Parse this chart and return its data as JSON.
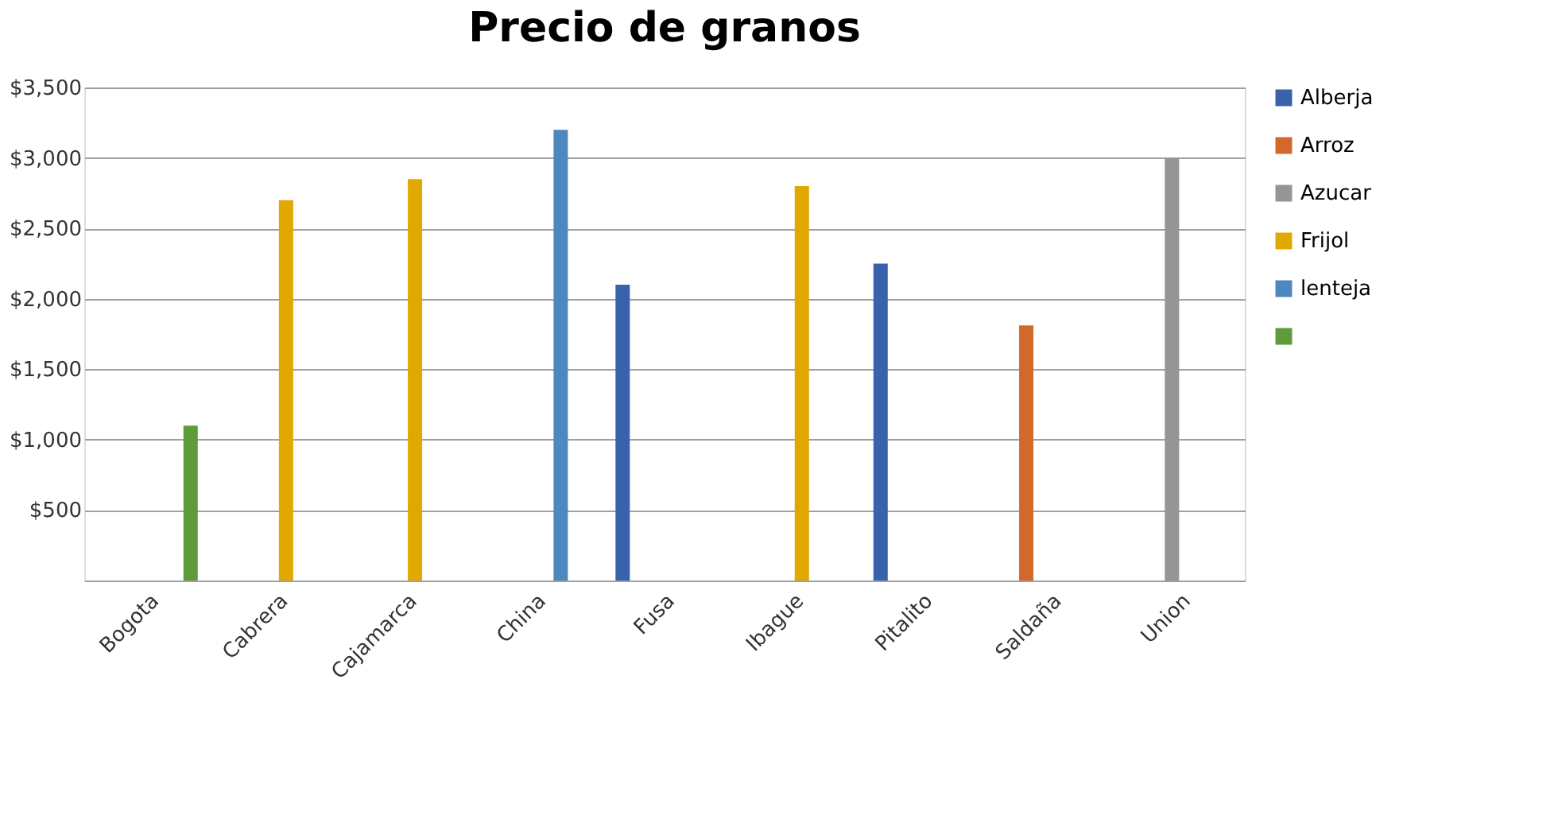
{
  "chart_data": {
    "type": "bar",
    "title": "Precio de granos",
    "categories": [
      "Bogota",
      "Cabrera",
      "Cajamarca",
      "China",
      "Fusa",
      "Ibague",
      "Pitalito",
      "Saldaña",
      "Union"
    ],
    "series": [
      {
        "name": "Alberja",
        "color": "#3a62ac",
        "values": [
          null,
          null,
          null,
          null,
          2100,
          null,
          2250,
          null,
          null
        ]
      },
      {
        "name": "Arroz",
        "color": "#d2692a",
        "values": [
          null,
          null,
          null,
          null,
          null,
          null,
          null,
          1810,
          null
        ]
      },
      {
        "name": "Azucar",
        "color": "#959595",
        "values": [
          null,
          null,
          null,
          null,
          null,
          null,
          null,
          null,
          3000
        ]
      },
      {
        "name": "Frijol",
        "color": "#e0a800",
        "values": [
          null,
          2700,
          2850,
          null,
          null,
          2800,
          null,
          null,
          null
        ]
      },
      {
        "name": "lenteja",
        "color": "#4f87bf",
        "values": [
          null,
          null,
          null,
          3200,
          null,
          null,
          null,
          null,
          null
        ]
      },
      {
        "color": "#5f9a3b",
        "values": [
          1100,
          null,
          null,
          null,
          null,
          null,
          null,
          null,
          null
        ]
      }
    ],
    "ylim": [
      0,
      3500
    ],
    "yticks": [
      {
        "value": 500,
        "label": "$500"
      },
      {
        "value": 1000,
        "label": "$1,000"
      },
      {
        "value": 1500,
        "label": "$1,500"
      },
      {
        "value": 2000,
        "label": "$2,000"
      },
      {
        "value": 2500,
        "label": "$2,500"
      },
      {
        "value": 3000,
        "label": "$3,000"
      },
      {
        "value": 3500,
        "label": "$3,500"
      }
    ],
    "grid": "y",
    "legend": "right"
  }
}
